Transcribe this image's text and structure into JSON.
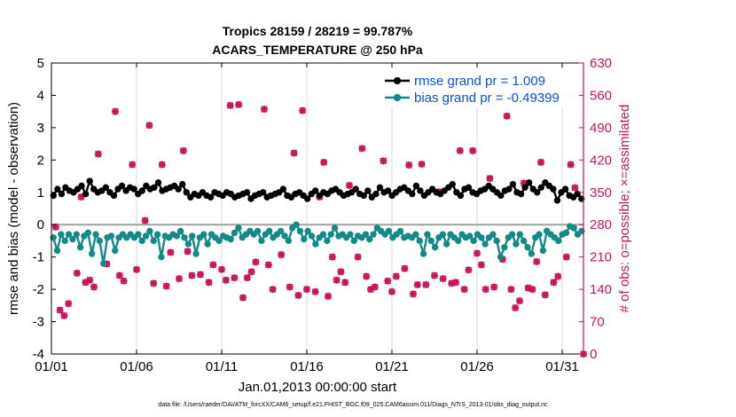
{
  "colors": {
    "rmse": "#000000",
    "bias": "#138a86",
    "obs": "#c8135a",
    "legend_text": "#0b4fd6",
    "zero_line": "#a0a0a0",
    "grid": "#d0d0d0"
  },
  "chart_data": {
    "type": "line",
    "title": "Tropics 28159 / 28219 = 99.787%",
    "subtitle": "ACARS_TEMPERATURE @ 250 hPa",
    "xlabel": "Jan.01,2013 00:00:00 start",
    "ylabel": "rmse and bias (model - observation)",
    "ylabel_right": "# of obs: o=possible; ×=assimilated",
    "footnote": "data file: /Users/raeder/DAI/ATM_forcXX/CAM6_setup/f.e21.FHIST_BGC.f09_025.CAM6assim.011/Diags_NTrS_2013-01/obs_diag_output.nc",
    "x_range": [
      0,
      31.25
    ],
    "ylim": [
      -4,
      5
    ],
    "ylim_right": [
      0,
      630
    ],
    "grid": "vertical",
    "legend_position": "top-right",
    "x_ticks": [
      {
        "value": 0,
        "label": "01/01"
      },
      {
        "value": 5,
        "label": "01/06"
      },
      {
        "value": 10,
        "label": "01/11"
      },
      {
        "value": 15,
        "label": "01/16"
      },
      {
        "value": 20,
        "label": "01/21"
      },
      {
        "value": 25,
        "label": "01/26"
      },
      {
        "value": 30,
        "label": "01/31"
      }
    ],
    "y_ticks": [
      "5",
      "4",
      "3",
      "2",
      "1",
      "0",
      "-1",
      "-2",
      "-3",
      "-4"
    ],
    "y_ticks_right": [
      "630",
      "560",
      "490",
      "420",
      "350",
      "280",
      "210",
      "140",
      "70",
      "0"
    ],
    "series": [
      {
        "name": "rmse grand pr = 1.009",
        "axis": "left",
        "values": [
          0.9,
          1.1,
          0.95,
          1.15,
          1.05,
          1.0,
          1.1,
          1.2,
          0.95,
          1.35,
          1.1,
          1.0,
          1.05,
          1.15,
          1.0,
          0.9,
          1.1,
          1.2,
          1.05,
          1.15,
          1.1,
          0.95,
          1.05,
          1.2,
          1.1,
          1.15,
          1.3,
          1.05,
          1.1,
          1.15,
          1.2,
          1.1,
          1.25,
          1.0,
          0.85,
          0.95,
          0.9,
          1.0,
          0.9,
          0.85,
          1.0,
          0.95,
          0.9,
          1.0,
          0.95,
          0.85,
          0.9,
          0.95,
          1.0,
          0.8,
          0.9,
          0.95,
          1.0,
          0.85,
          0.9,
          0.95,
          1.0,
          1.1,
          0.9,
          0.85,
          0.95,
          1.0,
          0.9,
          0.8,
          0.95,
          1.05,
          0.9,
          1.0,
          0.95,
          1.05,
          1.1,
          1.0,
          0.9,
          0.95,
          1.0,
          1.1,
          0.95,
          0.9,
          1.05,
          0.85,
          0.95,
          1.15,
          1.0,
          1.05,
          0.9,
          1.0,
          1.1,
          1.15,
          1.05,
          0.95,
          1.2,
          1.05,
          0.9,
          1.0,
          1.1,
          1.0,
          0.95,
          1.05,
          1.15,
          1.25,
          1.0,
          0.9,
          1.1,
          1.15,
          1.0,
          0.95,
          1.05,
          1.1,
          1.2,
          1.1,
          1.0,
          0.9,
          1.05,
          1.1,
          1.25,
          1.0,
          0.95,
          1.15,
          1.3,
          1.1,
          1.0,
          1.15,
          1.3,
          1.2,
          1.1,
          0.75,
          1.0,
          1.1,
          0.9,
          0.85,
          0.95,
          0.8
        ]
      },
      {
        "name": "bias grand pr = -0.49399",
        "axis": "left",
        "values": [
          -0.4,
          -0.8,
          -0.3,
          -0.5,
          -0.3,
          -0.45,
          -0.3,
          -0.7,
          -0.35,
          -0.25,
          -0.9,
          -0.3,
          -0.5,
          -1.2,
          -0.4,
          -0.35,
          -0.8,
          -0.4,
          -0.3,
          -0.4,
          -0.3,
          -0.4,
          -0.3,
          -0.5,
          -0.35,
          -0.2,
          -0.5,
          -0.3,
          -1.0,
          -0.35,
          -0.4,
          -0.3,
          -0.35,
          -0.2,
          -0.4,
          -0.6,
          -0.35,
          -0.9,
          -0.4,
          -0.3,
          -0.6,
          -0.3,
          -0.4,
          -0.5,
          -0.35,
          -0.4,
          -0.45,
          -0.25,
          -0.1,
          -0.4,
          -0.3,
          -0.2,
          -0.3,
          -0.2,
          -0.5,
          -0.3,
          -0.2,
          -0.4,
          -0.3,
          -0.2,
          -0.35,
          -0.5,
          -0.1,
          0.0,
          -0.2,
          -0.45,
          -0.2,
          -0.35,
          -0.6,
          -0.4,
          -0.3,
          -0.5,
          -0.3,
          -0.1,
          -0.35,
          -0.3,
          -0.4,
          -0.3,
          -0.5,
          -0.35,
          -0.4,
          -0.3,
          -0.45,
          -0.3,
          -0.1,
          -0.2,
          -0.3,
          -0.2,
          -0.4,
          -0.3,
          -0.2,
          -0.4,
          -0.35,
          -0.4,
          -0.3,
          -0.5,
          -0.9,
          -0.3,
          -0.5,
          -0.7,
          -0.4,
          -0.3,
          -0.6,
          -0.3,
          -0.4,
          -0.5,
          -0.3,
          -0.4,
          -0.35,
          -0.5,
          -0.3,
          -0.4,
          -0.6,
          -0.4,
          -0.3,
          -0.5,
          -1.0,
          -0.7,
          -0.4,
          -0.3,
          -0.6,
          -0.3,
          -0.5,
          -0.7,
          -0.9,
          -0.4,
          -0.3,
          -0.8,
          -0.2,
          -0.3,
          -0.4,
          -0.5,
          -0.3,
          -0.25,
          -0.05,
          -0.1,
          -0.3,
          -0.2
        ]
      }
    ],
    "obs_possible": {
      "axis": "right",
      "points": [
        [
          0.25,
          275
        ],
        [
          0.5,
          95
        ],
        [
          0.75,
          83
        ],
        [
          1.0,
          109
        ],
        [
          1.5,
          175
        ],
        [
          1.75,
          340
        ],
        [
          2.0,
          155
        ],
        [
          2.25,
          160
        ],
        [
          2.5,
          145
        ],
        [
          2.75,
          433
        ],
        [
          3.25,
          195
        ],
        [
          3.75,
          525
        ],
        [
          4.0,
          170
        ],
        [
          4.25,
          158
        ],
        [
          4.75,
          410
        ],
        [
          5.0,
          183
        ],
        [
          5.5,
          289
        ],
        [
          5.75,
          495
        ],
        [
          6.0,
          153
        ],
        [
          6.5,
          410
        ],
        [
          6.75,
          147
        ],
        [
          7.0,
          220
        ],
        [
          7.5,
          163
        ],
        [
          7.75,
          440
        ],
        [
          8.0,
          222
        ],
        [
          8.25,
          170
        ],
        [
          8.75,
          172
        ],
        [
          9.25,
          155
        ],
        [
          9.5,
          193
        ],
        [
          10.0,
          183
        ],
        [
          10.25,
          160
        ],
        [
          10.5,
          538
        ],
        [
          10.75,
          165
        ],
        [
          11.0,
          540
        ],
        [
          11.25,
          122
        ],
        [
          11.5,
          165
        ],
        [
          11.75,
          178
        ],
        [
          12.0,
          199
        ],
        [
          12.5,
          530
        ],
        [
          12.75,
          193
        ],
        [
          13.0,
          140
        ],
        [
          13.5,
          215
        ],
        [
          14.0,
          145
        ],
        [
          14.25,
          435
        ],
        [
          14.5,
          127
        ],
        [
          14.75,
          527
        ],
        [
          15.0,
          140
        ],
        [
          15.5,
          135
        ],
        [
          15.75,
          340
        ],
        [
          16.0,
          415
        ],
        [
          16.25,
          125
        ],
        [
          16.5,
          210
        ],
        [
          16.75,
          160
        ],
        [
          17.0,
          178
        ],
        [
          17.25,
          155
        ],
        [
          17.5,
          365
        ],
        [
          18.0,
          210
        ],
        [
          18.25,
          445
        ],
        [
          18.5,
          168
        ],
        [
          18.75,
          140
        ],
        [
          19.0,
          145
        ],
        [
          19.5,
          418
        ],
        [
          19.75,
          158
        ],
        [
          20.0,
          135
        ],
        [
          20.25,
          168
        ],
        [
          20.75,
          185
        ],
        [
          21.0,
          409
        ],
        [
          21.25,
          130
        ],
        [
          21.5,
          150
        ],
        [
          21.75,
          411
        ],
        [
          22.0,
          150
        ],
        [
          22.5,
          170
        ],
        [
          22.75,
          351
        ],
        [
          23.0,
          163
        ],
        [
          23.5,
          153
        ],
        [
          23.75,
          155
        ],
        [
          24.0,
          440
        ],
        [
          24.25,
          140
        ],
        [
          24.5,
          182
        ],
        [
          24.75,
          440
        ],
        [
          25.0,
          218
        ],
        [
          25.25,
          193
        ],
        [
          25.5,
          140
        ],
        [
          25.75,
          380
        ],
        [
          26.0,
          145
        ],
        [
          26.5,
          205
        ],
        [
          26.75,
          515
        ],
        [
          27.0,
          140
        ],
        [
          27.25,
          100
        ],
        [
          27.5,
          115
        ],
        [
          27.75,
          370
        ],
        [
          28.0,
          143
        ],
        [
          28.25,
          140
        ],
        [
          28.5,
          200
        ],
        [
          28.75,
          415
        ],
        [
          29.0,
          128
        ],
        [
          29.5,
          155
        ],
        [
          29.75,
          168
        ],
        [
          30.25,
          210
        ],
        [
          30.5,
          410
        ],
        [
          30.75,
          360
        ],
        [
          31.25,
          0
        ]
      ]
    },
    "obs_assimilated": {
      "axis": "right",
      "points": [
        [
          0.25,
          275
        ],
        [
          0.5,
          95
        ],
        [
          0.75,
          83
        ],
        [
          1.0,
          109
        ],
        [
          1.5,
          175
        ],
        [
          1.75,
          340
        ],
        [
          2.0,
          155
        ],
        [
          2.25,
          160
        ],
        [
          2.5,
          145
        ],
        [
          2.75,
          433
        ],
        [
          3.25,
          195
        ],
        [
          3.75,
          525
        ],
        [
          4.0,
          170
        ],
        [
          4.25,
          158
        ],
        [
          4.75,
          410
        ],
        [
          5.0,
          183
        ],
        [
          5.5,
          289
        ],
        [
          5.75,
          495
        ],
        [
          6.0,
          153
        ],
        [
          6.5,
          410
        ],
        [
          6.75,
          147
        ],
        [
          7.0,
          220
        ],
        [
          7.5,
          163
        ],
        [
          7.75,
          440
        ],
        [
          8.0,
          222
        ],
        [
          8.25,
          170
        ],
        [
          8.75,
          172
        ],
        [
          9.25,
          155
        ],
        [
          9.5,
          193
        ],
        [
          10.0,
          183
        ],
        [
          10.25,
          160
        ],
        [
          10.5,
          538
        ],
        [
          10.75,
          165
        ],
        [
          11.0,
          540
        ],
        [
          11.25,
          122
        ],
        [
          11.5,
          165
        ],
        [
          11.75,
          178
        ],
        [
          12.0,
          199
        ],
        [
          12.5,
          530
        ],
        [
          12.75,
          193
        ],
        [
          13.0,
          140
        ],
        [
          13.5,
          215
        ],
        [
          14.0,
          145
        ],
        [
          14.25,
          435
        ],
        [
          14.5,
          127
        ],
        [
          14.75,
          527
        ],
        [
          15.0,
          140
        ],
        [
          15.5,
          135
        ],
        [
          15.75,
          340
        ],
        [
          16.0,
          415
        ],
        [
          16.25,
          125
        ],
        [
          16.5,
          210
        ],
        [
          16.75,
          160
        ],
        [
          17.0,
          178
        ],
        [
          17.25,
          155
        ],
        [
          17.5,
          365
        ],
        [
          18.0,
          210
        ],
        [
          18.25,
          445
        ],
        [
          18.5,
          168
        ],
        [
          18.75,
          140
        ],
        [
          19.0,
          145
        ],
        [
          19.5,
          418
        ],
        [
          19.75,
          158
        ],
        [
          20.0,
          135
        ],
        [
          20.25,
          168
        ],
        [
          20.75,
          185
        ],
        [
          21.0,
          409
        ],
        [
          21.25,
          130
        ],
        [
          21.5,
          150
        ],
        [
          21.75,
          411
        ],
        [
          22.0,
          150
        ],
        [
          22.5,
          170
        ],
        [
          22.75,
          351
        ],
        [
          23.0,
          163
        ],
        [
          23.5,
          153
        ],
        [
          23.75,
          155
        ],
        [
          24.0,
          440
        ],
        [
          24.25,
          140
        ],
        [
          24.5,
          182
        ],
        [
          24.75,
          440
        ],
        [
          25.0,
          218
        ],
        [
          25.25,
          193
        ],
        [
          25.5,
          140
        ],
        [
          25.75,
          380
        ],
        [
          26.0,
          145
        ],
        [
          26.5,
          205
        ],
        [
          26.75,
          515
        ],
        [
          27.0,
          140
        ],
        [
          27.25,
          100
        ],
        [
          27.5,
          115
        ],
        [
          27.75,
          370
        ],
        [
          28.0,
          143
        ],
        [
          28.25,
          140
        ],
        [
          28.5,
          200
        ],
        [
          28.75,
          415
        ],
        [
          29.0,
          128
        ],
        [
          29.5,
          155
        ],
        [
          29.75,
          168
        ],
        [
          30.25,
          210
        ],
        [
          30.5,
          410
        ],
        [
          30.75,
          360
        ],
        [
          31.25,
          0
        ]
      ]
    }
  }
}
